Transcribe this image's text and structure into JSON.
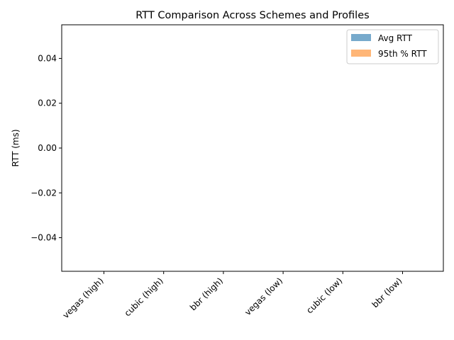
{
  "chart_data": {
    "type": "bar",
    "title": "RTT Comparison Across Schemes and Profiles",
    "xlabel": "",
    "ylabel": "RTT (ms)",
    "categories": [
      "vegas (high)",
      "cubic (high)",
      "bbr (high)",
      "vegas (low)",
      "cubic (low)",
      "bbr (low)"
    ],
    "series": [
      {
        "name": "Avg RTT",
        "color": "#77aacc",
        "values": [
          0,
          0,
          0,
          0,
          0,
          0
        ]
      },
      {
        "name": "95th % RTT",
        "color": "#ffb677",
        "values": [
          0,
          0,
          0,
          0,
          0,
          0
        ]
      }
    ],
    "ylim": [
      -0.055,
      0.055
    ],
    "yticks": [
      -0.04,
      -0.02,
      0.0,
      0.02,
      0.04
    ],
    "ytick_labels": [
      "−0.04",
      "−0.02",
      "0.00",
      "0.02",
      "0.04"
    ],
    "grid": false,
    "legend_position": "top-right"
  }
}
